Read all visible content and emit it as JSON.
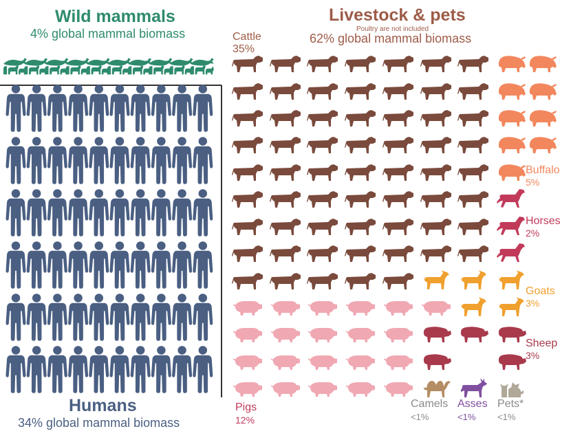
{
  "colors": {
    "wild": "#2e8b6e",
    "humans": "#4a5f82",
    "livestock_title": "#9e5b48",
    "cattle": "#7a4a3c",
    "buffalo": "#f2875d",
    "horses": "#c23a5a",
    "goats": "#f0a02e",
    "sheep": "#a83a4c",
    "pigs": "#f0a8b2",
    "camels": "#b58d64",
    "asses": "#7f4fa0",
    "pets": "#b0a898",
    "grey_text": "#8a8a8a"
  },
  "header": {
    "wild_title": "Wild mammals",
    "wild_subtitle": "4% global mammal biomass",
    "livestock_title": "Livestock & pets",
    "livestock_note": "Poultry are not included",
    "livestock_subtitle": "62% global mammal biomass"
  },
  "footer": {
    "humans_title": "Humans",
    "humans_subtitle": "34% global mammal biomass"
  },
  "chart_data": {
    "type": "pictogram",
    "unit_note": "",
    "groups": [
      {
        "name": "Wild mammals",
        "share_pct": 4,
        "icons": 10
      },
      {
        "name": "Humans",
        "share_pct": 34,
        "icons": 60
      },
      {
        "name": "Cattle",
        "share_pct": 35,
        "icons": 63
      },
      {
        "name": "Buffalo",
        "share_pct": 5,
        "icons": 9
      },
      {
        "name": "Horses",
        "share_pct": 2,
        "icons": 3
      },
      {
        "name": "Goats",
        "share_pct": 3,
        "icons": 5
      },
      {
        "name": "Sheep",
        "share_pct": 3,
        "icons": 5
      },
      {
        "name": "Pigs",
        "share_pct": 12,
        "icons": 24
      },
      {
        "name": "Camels",
        "share_pct": "<1",
        "icons": 1
      },
      {
        "name": "Asses",
        "share_pct": "<1",
        "icons": 1
      },
      {
        "name": "Pets",
        "share_pct": "<1",
        "icons": 1
      }
    ],
    "labels": {
      "cattle": {
        "name": "Cattle",
        "value": "35%"
      },
      "buffalo": {
        "name": "Buffalo",
        "value": "5%"
      },
      "horses": {
        "name": "Horses",
        "value": "2%"
      },
      "goats": {
        "name": "Goats",
        "value": "3%"
      },
      "sheep": {
        "name": "Sheep",
        "value": "3%"
      },
      "pigs": {
        "name": "Pigs",
        "value": "12%"
      },
      "camels": {
        "name": "Camels",
        "value": "<1%"
      },
      "asses": {
        "name": "Asses",
        "value": "<1%"
      },
      "pets": {
        "name": "Pets*",
        "value": "<1%"
      }
    }
  }
}
